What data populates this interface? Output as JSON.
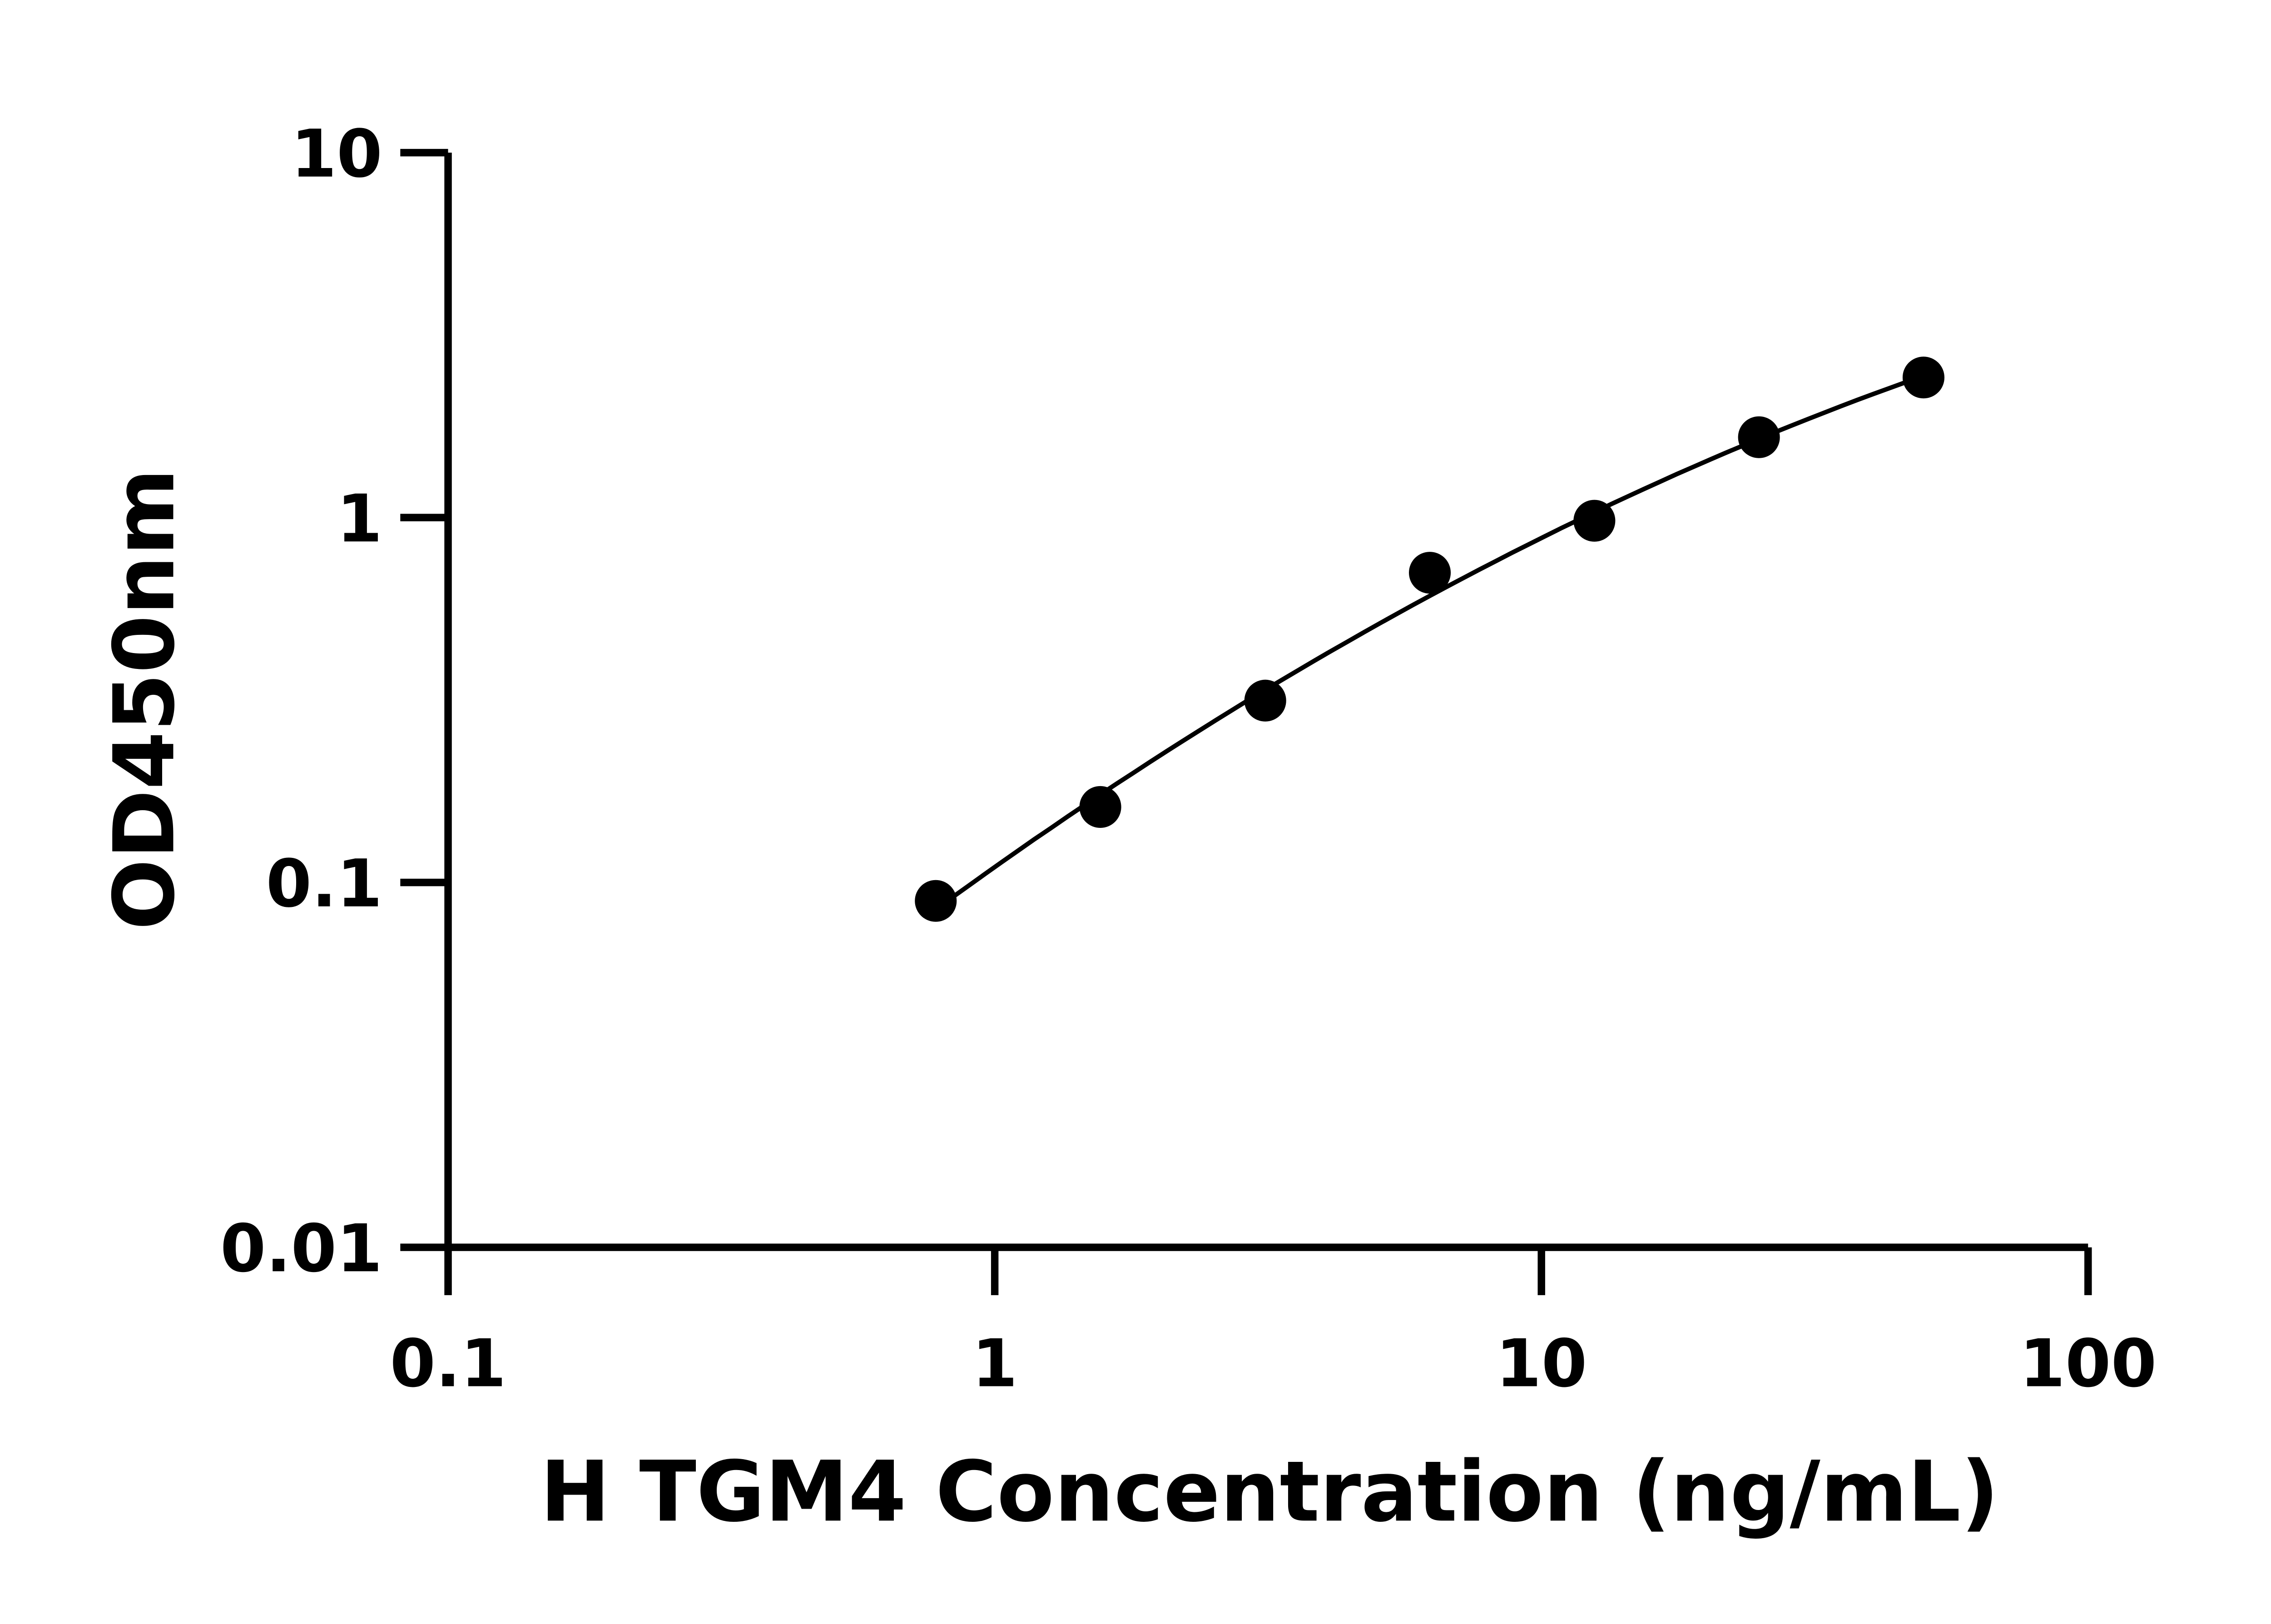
{
  "chart_data": {
    "type": "scatter",
    "title": "",
    "xlabel": "H TGM4 Concentration (ng/mL)",
    "ylabel": "OD450nm",
    "x_scale": "log",
    "y_scale": "log",
    "xlim": [
      0.1,
      100
    ],
    "ylim": [
      0.01,
      10
    ],
    "x_ticks": [
      "0.1",
      "1",
      "10",
      "100"
    ],
    "y_ticks": [
      "0.01",
      "0.1",
      "1",
      "10"
    ],
    "grid": false,
    "legend": "none",
    "fit_curve": true,
    "color": "#000000",
    "series": [
      {
        "x": [
          0.78,
          1.56,
          3.125,
          6.25,
          12.5,
          25,
          50
        ],
        "y": [
          0.089,
          0.161,
          0.315,
          0.706,
          0.98,
          1.66,
          2.42
        ]
      }
    ]
  }
}
